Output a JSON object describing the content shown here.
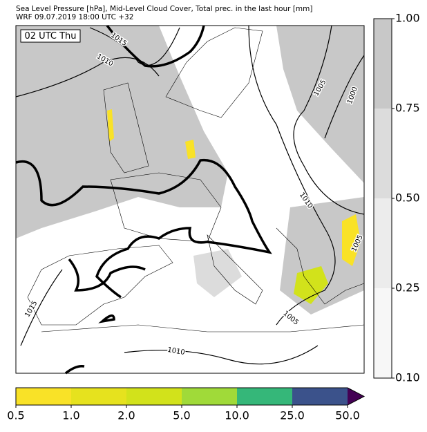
{
  "header": {
    "title": "Sea Level Pressure [hPa], Mid-Level Cloud Cover, Total prec. in the last hour [mm]",
    "subtitle": "WRF 09.07.2019 18:00 UTC +32"
  },
  "map": {
    "time_label": "02 UTC Thu",
    "contour_labels": [
      "1015",
      "1010",
      "1005",
      "1000",
      "1010",
      "1005",
      "1015",
      "1005",
      "1010"
    ]
  },
  "cloud_colorbar": {
    "colors": [
      "#f7f7f7",
      "#ececec",
      "#dcdcdc",
      "#c8c8c8"
    ],
    "ticks": [
      {
        "value": 0.1,
        "label": "0.10"
      },
      {
        "value": 0.25,
        "label": "0.25"
      },
      {
        "value": 0.5,
        "label": "0.50"
      },
      {
        "value": 0.75,
        "label": "0.75"
      },
      {
        "value": 1,
        "label": "1.00"
      }
    ]
  },
  "precip_colorbar": {
    "colors": [
      "#f9e227",
      "#e6e21e",
      "#d2e21b",
      "#a0da39",
      "#35b779",
      "#3b528b",
      "#440154"
    ],
    "ticks": [
      {
        "value": 0.5,
        "label": "0.5"
      },
      {
        "value": 1,
        "label": "1.0"
      },
      {
        "value": 2,
        "label": "2.0"
      },
      {
        "value": 5,
        "label": "5.0"
      },
      {
        "value": 10,
        "label": "10.0"
      },
      {
        "value": 25,
        "label": "25.0"
      },
      {
        "value": 50,
        "label": "50.0"
      }
    ]
  }
}
